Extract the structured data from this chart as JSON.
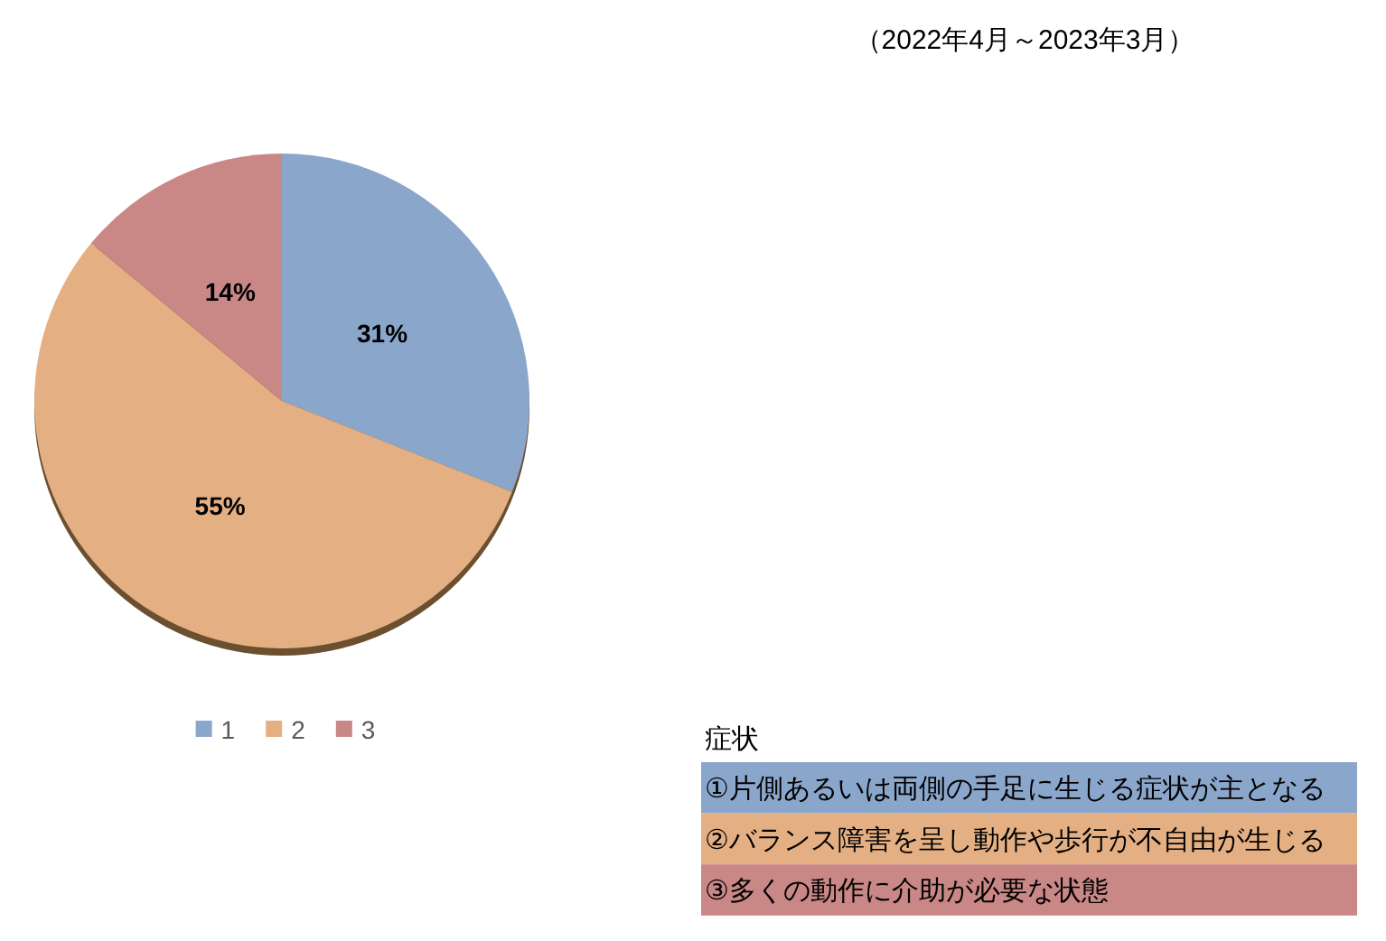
{
  "chart_data": {
    "type": "pie",
    "subtitle": "（2022年4月～2023年3月）",
    "categories": [
      "1",
      "2",
      "3"
    ],
    "values": [
      31,
      55,
      14
    ],
    "colors": [
      "#8ba6cb",
      "#e4b083",
      "#c98786"
    ],
    "value_labels": [
      "31%",
      "55%",
      "14%"
    ],
    "legend": "bottom",
    "annotations": [
      "症状",
      "①片側あるいは両側の手足に生じる症状が主となる",
      "②バランス障害を呈し動作や歩行が不自由が生じる",
      "③多くの動作に介助が必要な状態"
    ]
  }
}
